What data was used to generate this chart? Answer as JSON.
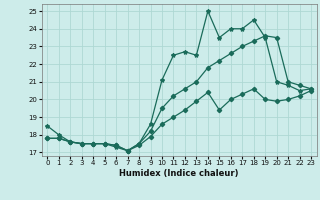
{
  "xlabel": "Humidex (Indice chaleur)",
  "bg_color": "#cdecea",
  "line_color": "#1a6b5a",
  "grid_color": "#aed8d4",
  "xlim": [
    -0.5,
    23.5
  ],
  "ylim": [
    16.8,
    25.4
  ],
  "xticks": [
    0,
    1,
    2,
    3,
    4,
    5,
    6,
    7,
    8,
    9,
    10,
    11,
    12,
    13,
    14,
    15,
    16,
    17,
    18,
    19,
    20,
    21,
    22,
    23
  ],
  "yticks": [
    17,
    18,
    19,
    20,
    21,
    22,
    23,
    24,
    25
  ],
  "line1_x": [
    0,
    1,
    2,
    3,
    4,
    5,
    6,
    7,
    8,
    9,
    10,
    11,
    12,
    13,
    14,
    15,
    16,
    17,
    18,
    19,
    20,
    21,
    22,
    23
  ],
  "line1_y": [
    18.5,
    18.0,
    17.6,
    17.5,
    17.5,
    17.5,
    17.3,
    17.1,
    17.5,
    18.6,
    21.1,
    22.5,
    22.7,
    22.5,
    25.0,
    23.5,
    24.0,
    24.0,
    24.5,
    23.5,
    21.0,
    20.8,
    20.5,
    20.6
  ],
  "line2_x": [
    0,
    1,
    2,
    3,
    4,
    5,
    6,
    7,
    8,
    9,
    10,
    11,
    12,
    13,
    14,
    15,
    16,
    17,
    18,
    19,
    20,
    21,
    22,
    23
  ],
  "line2_y": [
    17.8,
    17.8,
    17.6,
    17.5,
    17.5,
    17.5,
    17.4,
    17.1,
    17.5,
    18.2,
    19.5,
    20.2,
    20.6,
    21.0,
    21.8,
    22.2,
    22.6,
    23.0,
    23.3,
    23.6,
    23.5,
    21.0,
    20.8,
    20.6
  ],
  "line3_x": [
    0,
    1,
    2,
    3,
    4,
    5,
    6,
    7,
    8,
    9,
    10,
    11,
    12,
    13,
    14,
    15,
    16,
    17,
    18,
    19,
    20,
    21,
    22,
    23
  ],
  "line3_y": [
    17.8,
    17.8,
    17.6,
    17.5,
    17.5,
    17.5,
    17.4,
    17.1,
    17.4,
    17.9,
    18.6,
    19.0,
    19.4,
    19.9,
    20.4,
    19.4,
    20.0,
    20.3,
    20.6,
    20.0,
    19.9,
    20.0,
    20.2,
    20.5
  ]
}
